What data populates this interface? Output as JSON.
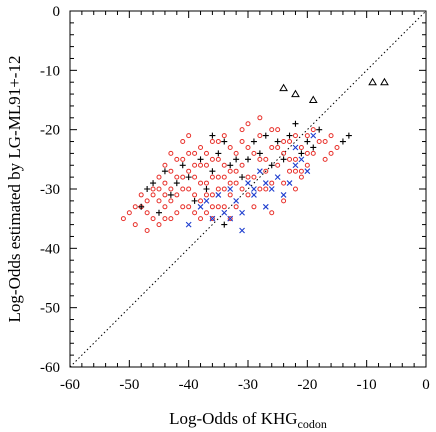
{
  "chart_data": {
    "type": "scatter",
    "xlabel": "Log-Odds of KHG",
    "xlabel_subscript": "codon",
    "ylabel": "Log-Odds estimated by LG-ML91+-12",
    "xlim": [
      -60,
      0
    ],
    "ylim": [
      -60,
      0
    ],
    "xticks": [
      -60,
      -50,
      -40,
      -30,
      -20,
      -10,
      0
    ],
    "yticks": [
      -60,
      -50,
      -40,
      -30,
      -20,
      -10,
      0
    ],
    "xtick_labels": [
      "-60",
      "-50",
      "-40",
      "-30",
      "-20",
      "-10",
      "0"
    ],
    "ytick_labels": [
      "-60",
      "-50",
      "-40",
      "-30",
      "-20",
      "-10",
      "0"
    ],
    "grid": false,
    "legend": "none",
    "reference_line": {
      "style": "dotted",
      "from": [
        -60,
        -60
      ],
      "to": [
        0,
        0
      ]
    },
    "series": [
      {
        "marker": "circle",
        "color": "#e8302a",
        "points": [
          [
            -51,
            -35
          ],
          [
            -50,
            -34
          ],
          [
            -49,
            -36
          ],
          [
            -48,
            -33
          ],
          [
            -48,
            -31
          ],
          [
            -47,
            -34
          ],
          [
            -47,
            -37
          ],
          [
            -46,
            -30
          ],
          [
            -46,
            -35
          ],
          [
            -45,
            -32
          ],
          [
            -45,
            -28
          ],
          [
            -44,
            -33
          ],
          [
            -44,
            -26
          ],
          [
            -43,
            -30
          ],
          [
            -43,
            -35
          ],
          [
            -42,
            -28
          ],
          [
            -42,
            -31
          ],
          [
            -41,
            -25
          ],
          [
            -41,
            -33
          ],
          [
            -40,
            -27
          ],
          [
            -40,
            -30
          ],
          [
            -39,
            -24
          ],
          [
            -39,
            -34
          ],
          [
            -38,
            -29
          ],
          [
            -38,
            -23
          ],
          [
            -37,
            -31
          ],
          [
            -37,
            -26
          ],
          [
            -36,
            -28
          ],
          [
            -36,
            -22
          ],
          [
            -35,
            -33
          ],
          [
            -35,
            -25
          ],
          [
            -34,
            -30
          ],
          [
            -34,
            -21
          ],
          [
            -33,
            -27
          ],
          [
            -33,
            -35
          ],
          [
            -32,
            -24
          ],
          [
            -32,
            -29
          ],
          [
            -31,
            -26
          ],
          [
            -31,
            -20
          ],
          [
            -30,
            -31
          ],
          [
            -30,
            -23
          ],
          [
            -29,
            -28
          ],
          [
            -29,
            -33
          ],
          [
            -28,
            -25
          ],
          [
            -28,
            -21
          ],
          [
            -27,
            -30
          ],
          [
            -27,
            -27
          ],
          [
            -26,
            -23
          ],
          [
            -26,
            -34
          ],
          [
            -25,
            -26
          ],
          [
            -25,
            -20
          ],
          [
            -24,
            -29
          ],
          [
            -24,
            -24
          ],
          [
            -23,
            -27
          ],
          [
            -23,
            -22
          ],
          [
            -22,
            -25
          ],
          [
            -22,
            -30
          ],
          [
            -21,
            -23
          ],
          [
            -21,
            -28
          ],
          [
            -20,
            -21
          ],
          [
            -20,
            -26
          ],
          [
            -19,
            -24
          ],
          [
            -18,
            -22
          ],
          [
            -17,
            -25
          ],
          [
            -16,
            -21
          ],
          [
            -15,
            -23
          ],
          [
            -44,
            -29
          ],
          [
            -43,
            -27
          ],
          [
            -42,
            -34
          ],
          [
            -41,
            -30
          ],
          [
            -40,
            -33
          ],
          [
            -39,
            -28
          ],
          [
            -38,
            -32
          ],
          [
            -37,
            -29
          ],
          [
            -36,
            -31
          ],
          [
            -35,
            -28
          ],
          [
            -34,
            -26
          ],
          [
            -33,
            -31
          ],
          [
            -32,
            -27
          ],
          [
            -31,
            -30
          ],
          [
            -39,
            -26
          ],
          [
            -37,
            -24
          ],
          [
            -35,
            -22
          ],
          [
            -33,
            -23
          ],
          [
            -31,
            -22
          ],
          [
            -29,
            -24
          ],
          [
            -27,
            -25
          ],
          [
            -25,
            -23
          ],
          [
            -23,
            -25
          ],
          [
            -21,
            -27
          ],
          [
            -46,
            -31
          ],
          [
            -45,
            -36
          ],
          [
            -44,
            -31
          ],
          [
            -43,
            -32
          ],
          [
            -42,
            -25
          ],
          [
            -41,
            -28
          ],
          [
            -40,
            -24
          ],
          [
            -38,
            -26
          ],
          [
            -36,
            -25
          ],
          [
            -34,
            -28
          ],
          [
            -45,
            -30
          ],
          [
            -44,
            -35
          ],
          [
            -43,
            -24
          ],
          [
            -41,
            -22
          ],
          [
            -40,
            -21
          ],
          [
            -39,
            -31
          ],
          [
            -37,
            -34
          ],
          [
            -36,
            -35
          ],
          [
            -35,
            -30
          ],
          [
            -34,
            -33
          ],
          [
            -33,
            -29
          ],
          [
            -32,
            -33
          ],
          [
            -30,
            -28
          ],
          [
            -28,
            -30
          ],
          [
            -26,
            -29
          ],
          [
            -24,
            -32
          ],
          [
            -22,
            -27
          ],
          [
            -20,
            -24
          ],
          [
            -49,
            -33
          ],
          [
            -47,
            -32
          ],
          [
            -30,
            -19
          ],
          [
            -28,
            -18
          ],
          [
            -26,
            -20
          ],
          [
            -24,
            -22
          ],
          [
            -22,
            -21
          ],
          [
            -19,
            -20
          ],
          [
            -17,
            -22
          ],
          [
            -16,
            -24
          ],
          [
            -38,
            -35
          ],
          [
            -36,
            -33
          ]
        ]
      },
      {
        "marker": "plus",
        "color": "#000000",
        "points": [
          [
            -47,
            -30
          ],
          [
            -45,
            -34
          ],
          [
            -44,
            -27
          ],
          [
            -42,
            -29
          ],
          [
            -41,
            -26
          ],
          [
            -39,
            -32
          ],
          [
            -38,
            -25
          ],
          [
            -37,
            -30
          ],
          [
            -36,
            -27
          ],
          [
            -35,
            -24
          ],
          [
            -34,
            -22
          ],
          [
            -33,
            -26
          ],
          [
            -32,
            -25
          ],
          [
            -31,
            -28
          ],
          [
            -29,
            -22
          ],
          [
            -28,
            -24
          ],
          [
            -27,
            -21
          ],
          [
            -26,
            -26
          ],
          [
            -25,
            -22
          ],
          [
            -24,
            -25
          ],
          [
            -23,
            -21
          ],
          [
            -21,
            -24
          ],
          [
            -19,
            -23
          ],
          [
            -18,
            -20
          ],
          [
            -14,
            -22
          ],
          [
            -13,
            -21
          ],
          [
            -22,
            -19
          ],
          [
            -20,
            -22
          ],
          [
            -43,
            -31
          ],
          [
            -40,
            -28
          ],
          [
            -46,
            -29
          ],
          [
            -48,
            -33
          ],
          [
            -34,
            -36
          ],
          [
            -30,
            -25
          ],
          [
            -36,
            -21
          ]
        ]
      },
      {
        "marker": "x",
        "color": "#1f3fcf",
        "points": [
          [
            -38,
            -33
          ],
          [
            -36,
            -35
          ],
          [
            -35,
            -31
          ],
          [
            -34,
            -34
          ],
          [
            -33,
            -30
          ],
          [
            -32,
            -32
          ],
          [
            -31,
            -34
          ],
          [
            -30,
            -29
          ],
          [
            -29,
            -31
          ],
          [
            -28,
            -27
          ],
          [
            -27,
            -33
          ],
          [
            -26,
            -30
          ],
          [
            -25,
            -28
          ],
          [
            -24,
            -31
          ],
          [
            -23,
            -29
          ],
          [
            -22,
            -26
          ],
          [
            -21,
            -25
          ],
          [
            -20,
            -27
          ],
          [
            -19,
            -21
          ],
          [
            -37,
            -32
          ],
          [
            -33,
            -35
          ],
          [
            -29,
            -30
          ],
          [
            -27,
            -29
          ],
          [
            -31,
            -37
          ],
          [
            -40,
            -36
          ],
          [
            -22,
            -23
          ]
        ]
      },
      {
        "marker": "triangle",
        "color": "#000000",
        "points": [
          [
            -24,
            -13
          ],
          [
            -22,
            -14
          ],
          [
            -19,
            -15
          ],
          [
            -9,
            -12
          ],
          [
            -7,
            -12
          ]
        ]
      }
    ]
  }
}
